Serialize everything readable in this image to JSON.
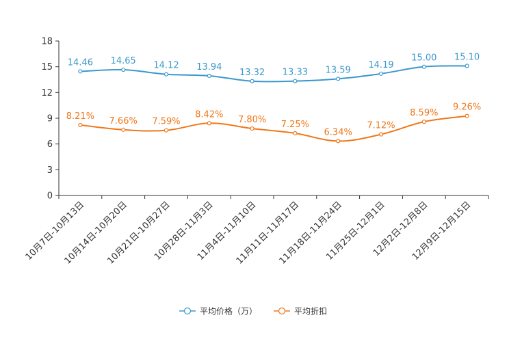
{
  "chart_data": {
    "type": "line",
    "title": "",
    "xlabel": "",
    "ylabel": "",
    "ylim": [
      0,
      18
    ],
    "yticks": [
      0,
      3,
      6,
      9,
      12,
      15,
      18
    ],
    "grid": false,
    "legend_position": "bottom-center",
    "categories": [
      "10月7日-10月13日",
      "10月14日-10月20日",
      "10月21日-10月27日",
      "10月28日-11月3日",
      "11月4日-11月10日",
      "11月11日-11月17日",
      "11月18日-11月24日",
      "11月25日-12月1日",
      "12月2日-12月8日",
      "12月9日-12月15日"
    ],
    "series": [
      {
        "name": "平均价格（万）",
        "color": "#3a98cc",
        "values": [
          14.46,
          14.65,
          14.12,
          13.94,
          13.32,
          13.33,
          13.59,
          14.19,
          15.0,
          15.1
        ],
        "labels": [
          "14.46",
          "14.65",
          "14.12",
          "13.94",
          "13.32",
          "13.33",
          "13.59",
          "14.19",
          "15.00",
          "15.10"
        ]
      },
      {
        "name": "平均折扣",
        "color": "#f07718",
        "values": [
          8.21,
          7.66,
          7.59,
          8.42,
          7.8,
          7.25,
          6.34,
          7.12,
          8.59,
          9.26
        ],
        "labels": [
          "8.21%",
          "7.66%",
          "7.59%",
          "8.42%",
          "7.80%",
          "7.25%",
          "6.34%",
          "7.12%",
          "8.59%",
          "9.26%"
        ]
      }
    ]
  }
}
